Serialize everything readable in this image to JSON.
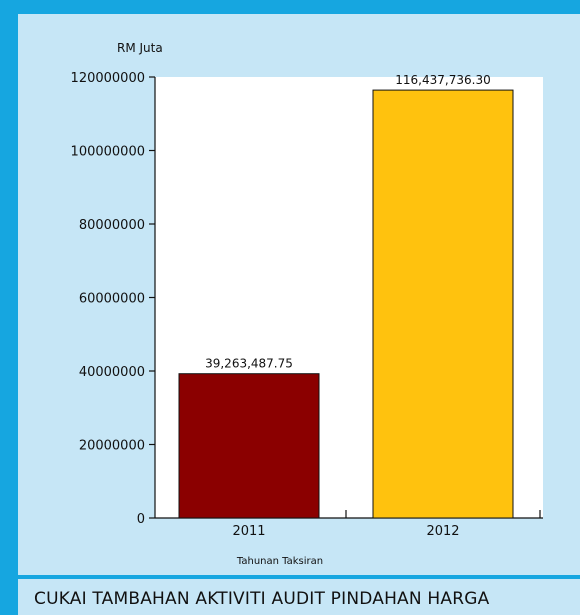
{
  "caption": "CUKAI TAMBAHAN AKTIVITI AUDIT PINDAHAN HARGA",
  "colors": {
    "frame": "#16a6e0",
    "panel": "#c6e6f6",
    "bar_2011": "#8b0000",
    "bar_2012": "#ffc20e"
  },
  "chart_data": {
    "type": "bar",
    "title": "",
    "xlabel": "Tahunan Taksiran",
    "ylabel": "RM Juta",
    "categories": [
      "2011",
      "2012"
    ],
    "values": [
      39263487.75,
      116437736.3
    ],
    "data_labels": [
      "39,263,487.75",
      "116,437,736.30"
    ],
    "bar_colors": [
      "#8b0000",
      "#ffc20e"
    ],
    "ylim": [
      0,
      120000000
    ],
    "yticks": [
      0,
      20000000,
      40000000,
      60000000,
      80000000,
      100000000,
      120000000
    ],
    "ytick_labels": [
      "0",
      "20000000",
      "40000000",
      "60000000",
      "80000000",
      "100000000",
      "120000000"
    ],
    "grid": false,
    "legend": "none"
  }
}
